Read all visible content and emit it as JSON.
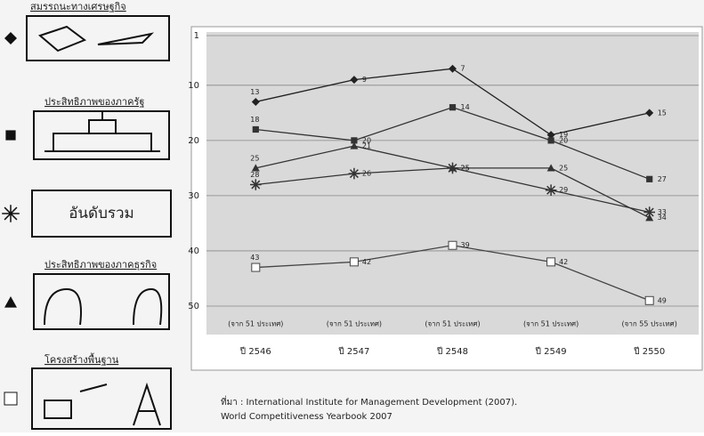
{
  "chart_data": {
    "type": "line",
    "categories": [
      "ปี 2546",
      "ปี 2547",
      "ปี 2548",
      "ปี 2549",
      "ปี 2550"
    ],
    "category_notes": [
      "(จาก 51 ประเทศ)",
      "(จาก 51 ประเทศ)",
      "(จาก 51 ประเทศ)",
      "(จาก 51 ประเทศ)",
      "(จาก 55 ประเทศ)"
    ],
    "series": [
      {
        "name": "สมรรถนะทางเศรษฐกิจ",
        "marker": "diamond",
        "color": "#222222",
        "values": [
          13,
          9,
          7,
          19,
          15
        ]
      },
      {
        "name": "ประสิทธิภาพของภาครัฐ",
        "marker": "square",
        "color": "#333333",
        "values": [
          18,
          20,
          14,
          20,
          27
        ]
      },
      {
        "name": "อันดับรวม",
        "marker": "star",
        "color": "#333333",
        "values": [
          28,
          26,
          25,
          29,
          33
        ]
      },
      {
        "name": "ประสิทธิภาพของภาคธุรกิจ",
        "marker": "triangle",
        "color": "#333333",
        "values": [
          25,
          21,
          25,
          25,
          34
        ]
      },
      {
        "name": "โครงสร้างพื้นฐาน",
        "marker": "open-square",
        "color": "#444444",
        "values": [
          43,
          42,
          39,
          42,
          49
        ]
      }
    ],
    "ylim": [
      1,
      55
    ],
    "y_inverted": true,
    "yticks": [
      1,
      10,
      20,
      30,
      40,
      50
    ],
    "grid": true,
    "source": [
      "ที่มา : International Institute for Management Development (2007).",
      "World Competitiveness Yearbook 2007"
    ]
  }
}
